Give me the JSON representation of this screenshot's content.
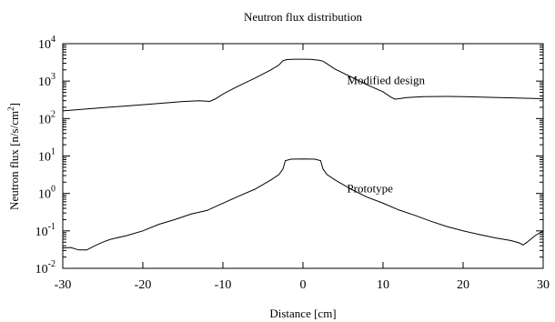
{
  "chart_data": {
    "type": "line",
    "title": "Neutron flux distribution",
    "xlabel": "Distance [cm]",
    "ylabel": "Neutron flux [n/s/cm",
    "ylabel_sup": "2",
    "ylabel_close": "]",
    "xlim": [
      -30,
      30
    ],
    "ylim": [
      0.01,
      10000
    ],
    "yscale": "log",
    "grid": false,
    "x_ticks": [
      "-30",
      "-20",
      "-10",
      "0",
      "10",
      "20",
      "30"
    ],
    "y_ticks": [
      {
        "base": "10",
        "exp": "-2"
      },
      {
        "base": "10",
        "exp": "-1"
      },
      {
        "base": "10",
        "exp": "0"
      },
      {
        "base": "10",
        "exp": "1"
      },
      {
        "base": "10",
        "exp": "2"
      },
      {
        "base": "10",
        "exp": "3"
      },
      {
        "base": "10",
        "exp": "4"
      }
    ],
    "annotations": [
      {
        "text": "Modified design",
        "x": 5.5,
        "y": 1100
      },
      {
        "text": "Prototype",
        "x": 5.5,
        "y": 1.4
      }
    ],
    "series": [
      {
        "x": [
          -30,
          -25,
          -20,
          -15,
          -13,
          -12,
          -11.7,
          -11,
          -10,
          -8,
          -6,
          -4,
          -3,
          -2.5,
          -2,
          -1,
          0,
          1,
          2,
          2.5,
          3,
          4,
          6,
          8,
          10,
          11,
          11.5,
          12,
          13,
          15,
          18,
          20,
          25,
          30
        ],
        "y": [
          160,
          195,
          235,
          285,
          300,
          290,
          285,
          330,
          450,
          750,
          1200,
          2000,
          2700,
          3500,
          3750,
          3850,
          3850,
          3800,
          3600,
          3400,
          2900,
          2100,
          1300,
          800,
          520,
          370,
          330,
          340,
          365,
          385,
          390,
          385,
          360,
          340
        ]
      },
      {
        "x": [
          -30,
          -29,
          -28,
          -27,
          -26,
          -25,
          -24,
          -22,
          -20,
          -18,
          -16,
          -14,
          -12,
          -10,
          -8,
          -6,
          -4,
          -3,
          -2.5,
          -2.2,
          -1.5,
          0,
          1.5,
          2.2,
          2.5,
          3,
          4,
          6,
          8,
          10,
          12,
          14,
          16,
          18,
          20,
          22,
          24,
          25,
          26,
          27,
          27.5,
          28,
          29,
          30
        ],
        "y": [
          0.035,
          0.036,
          0.031,
          0.031,
          0.04,
          0.05,
          0.06,
          0.075,
          0.1,
          0.15,
          0.2,
          0.28,
          0.35,
          0.55,
          0.85,
          1.3,
          2.3,
          3.2,
          4.5,
          7.5,
          8.2,
          8.3,
          8.2,
          7.5,
          4.5,
          3.2,
          2.3,
          1.3,
          0.8,
          0.55,
          0.36,
          0.26,
          0.18,
          0.13,
          0.1,
          0.08,
          0.065,
          0.06,
          0.055,
          0.048,
          0.042,
          0.05,
          0.075,
          0.1
        ]
      }
    ]
  }
}
